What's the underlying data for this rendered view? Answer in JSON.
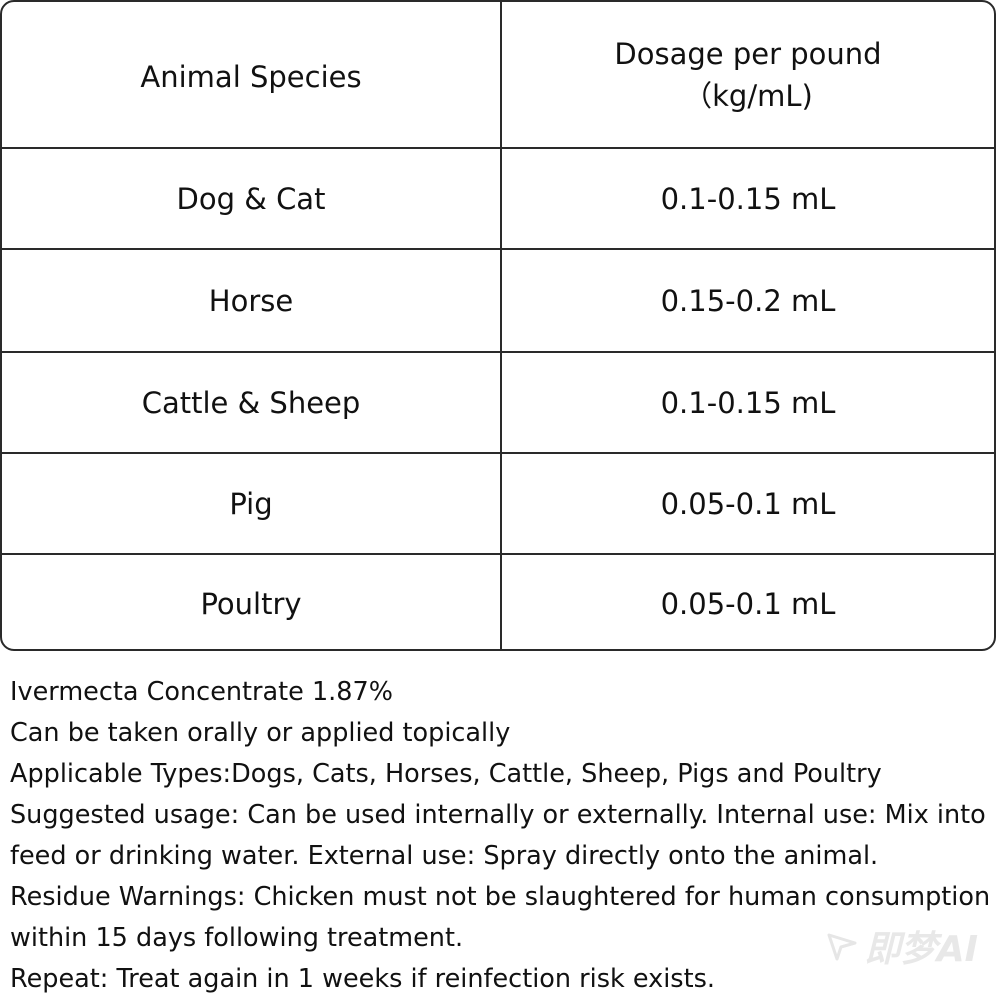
{
  "table": {
    "header": {
      "species": "Animal Species",
      "dosage_line1": "Dosage per pound",
      "dosage_line2": "（kg/mL)"
    },
    "rows": [
      {
        "species": "Dog & Cat",
        "dosage": "0.1-0.15 mL"
      },
      {
        "species": "Horse",
        "dosage": "0.15-0.2 mL"
      },
      {
        "species": "Cattle & Sheep",
        "dosage": "0.1-0.15 mL"
      },
      {
        "species": "Pig",
        "dosage": "0.05-0.1 mL"
      },
      {
        "species": "Poultry",
        "dosage": "0.05-0.1 mL"
      }
    ]
  },
  "notes": [
    "Ivermecta Concentrate 1.87%",
    "Can be taken orally or applied topically",
    "Applicable Types:Dogs, Cats, Horses, Cattle, Sheep, Pigs and Poultry",
    "Suggested usage: Can be used internally or externally. Internal use: Mix into",
    "feed  or drinking water. External use: Spray directly onto the animal.",
    "Residue Warnings: Chicken must not be slaughtered for human consumption",
    "within 15 days following treatment.",
    "Repeat: Treat again in 1 weeks if reinfection risk exists."
  ],
  "watermark": {
    "text": "即梦AI",
    "icon": "star-logo-icon"
  }
}
